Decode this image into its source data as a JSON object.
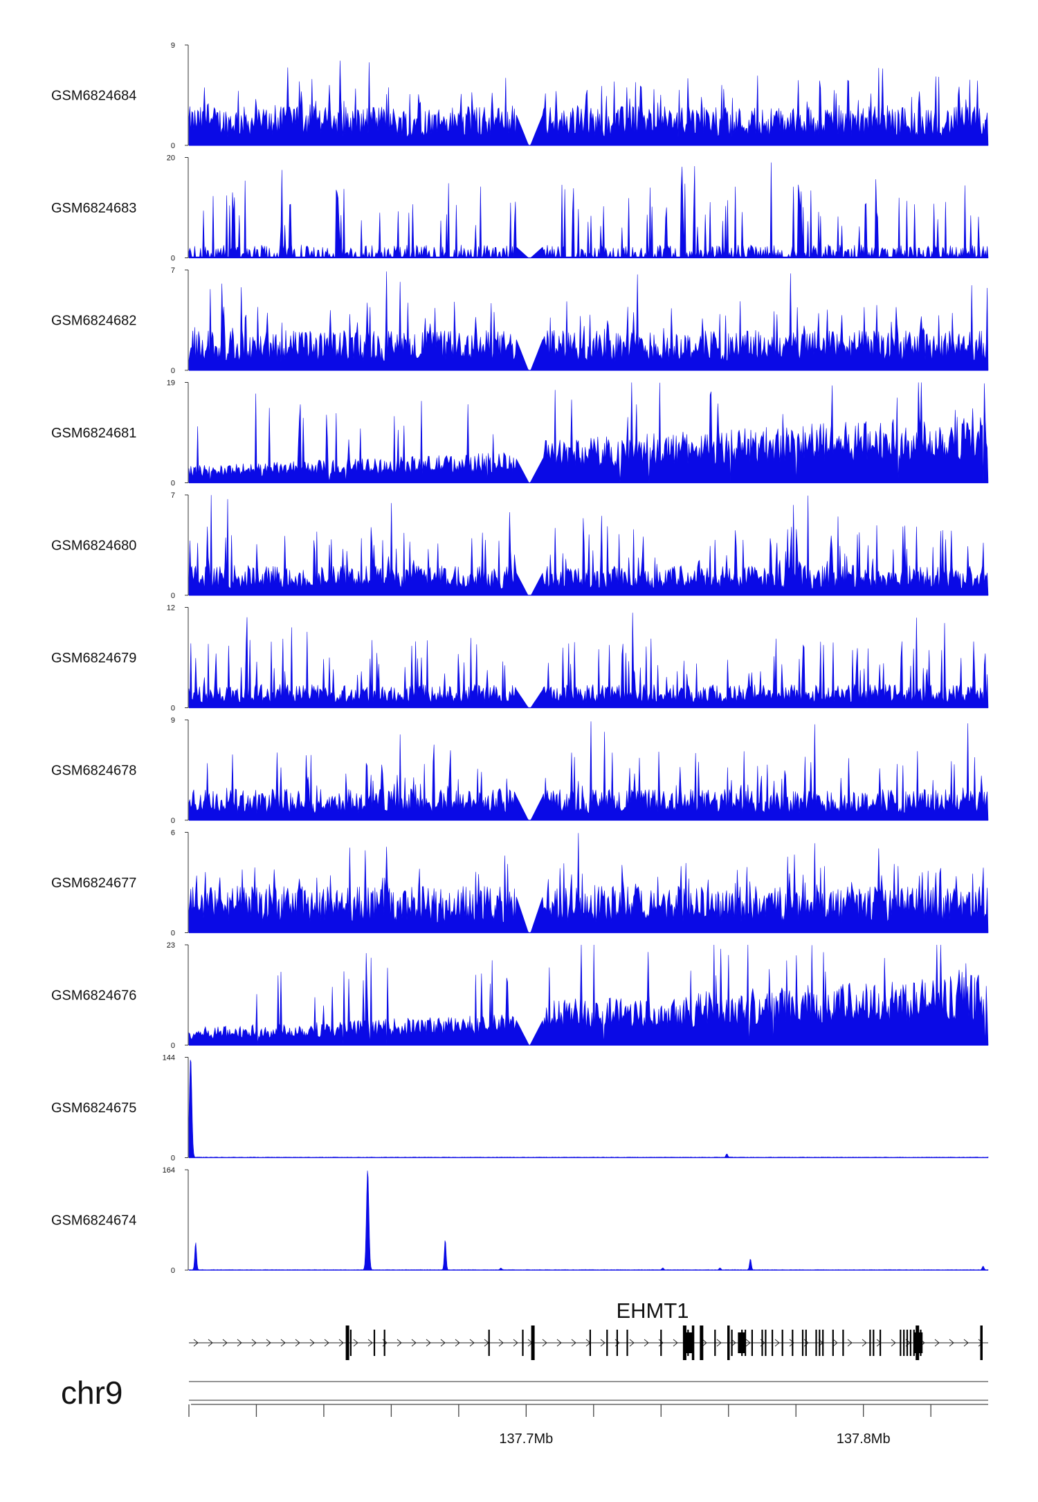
{
  "chart_data": {
    "type": "area",
    "chromosome": "chr9",
    "x_range": [
      137.6,
      137.837
    ],
    "x_tick_labels": [
      {
        "value": 137.7,
        "label": "137.7Mb"
      },
      {
        "value": 137.8,
        "label": "137.8Mb"
      }
    ],
    "gene": {
      "name": "EHMT1",
      "strand": "+",
      "start": 137.6,
      "end": 137.837,
      "exons": [
        137.647,
        137.648,
        137.655,
        137.658,
        137.689,
        137.699,
        137.702,
        137.719,
        137.724,
        137.727,
        137.73,
        137.74,
        137.747,
        137.748,
        137.7495,
        137.752,
        137.756,
        137.76,
        137.761,
        137.764,
        137.765,
        137.767,
        137.77,
        137.771,
        137.773,
        137.776,
        137.779,
        137.782,
        137.783,
        137.786,
        137.787,
        137.788,
        137.791,
        137.794,
        137.802,
        137.803,
        137.805,
        137.811,
        137.812,
        137.813,
        137.814,
        137.815,
        137.816,
        137.817,
        137.835
      ]
    },
    "series_color": "#0a0ae6",
    "tracks": [
      {
        "name": "GSM6824684",
        "ymax": 9,
        "profile": "spiky",
        "base": 2.5,
        "peak": 9
      },
      {
        "name": "GSM6824683",
        "ymax": 20,
        "profile": "sparse",
        "base": 2,
        "peak": 20
      },
      {
        "name": "GSM6824682",
        "ymax": 7,
        "profile": "spiky",
        "base": 2,
        "peak": 7
      },
      {
        "name": "GSM6824681",
        "ymax": 19,
        "profile": "broad-rising",
        "base": 4,
        "peak": 19
      },
      {
        "name": "GSM6824680",
        "ymax": 7,
        "profile": "spiky",
        "base": 1.5,
        "peak": 7
      },
      {
        "name": "GSM6824679",
        "ymax": 12,
        "profile": "spiky",
        "base": 2,
        "peak": 12
      },
      {
        "name": "GSM6824678",
        "ymax": 9,
        "profile": "spiky",
        "base": 2,
        "peak": 9
      },
      {
        "name": "GSM6824677",
        "ymax": 6,
        "profile": "spiky",
        "base": 2,
        "peak": 6
      },
      {
        "name": "GSM6824676",
        "ymax": 23,
        "profile": "broad-rising",
        "base": 5,
        "peak": 23
      },
      {
        "name": "GSM6824675",
        "ymax": 144,
        "profile": "peaks",
        "peaks": [
          {
            "x": 137.6005,
            "y": 144
          },
          {
            "x": 137.7595,
            "y": 5
          }
        ]
      },
      {
        "name": "GSM6824674",
        "ymax": 164,
        "profile": "peaks",
        "peaks": [
          {
            "x": 137.602,
            "y": 45
          },
          {
            "x": 137.653,
            "y": 164
          },
          {
            "x": 137.676,
            "y": 50
          },
          {
            "x": 137.6925,
            "y": 3
          },
          {
            "x": 137.7405,
            "y": 3
          },
          {
            "x": 137.7575,
            "y": 3
          },
          {
            "x": 137.7665,
            "y": 18
          },
          {
            "x": 137.8355,
            "y": 6
          }
        ]
      }
    ],
    "gap": [
      137.697,
      137.705
    ]
  }
}
